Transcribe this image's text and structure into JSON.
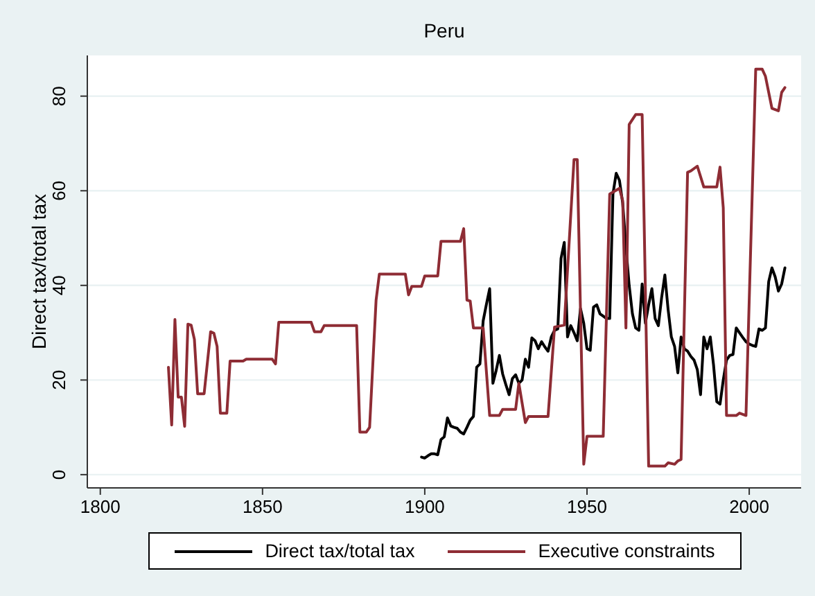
{
  "chart_data": {
    "type": "line",
    "title": "Peru",
    "ylabel": "Direct tax/total tax",
    "series": [
      {
        "name": "Direct tax/total tax",
        "color": "#000000",
        "x": [
          1899,
          1900,
          1901,
          1902,
          1903,
          1904,
          1905,
          1906,
          1907,
          1908,
          1909,
          1910,
          1911,
          1912,
          1913,
          1914,
          1915,
          1916,
          1917,
          1918,
          1919,
          1920,
          1921,
          1922,
          1923,
          1924,
          1925,
          1926,
          1927,
          1928,
          1929,
          1930,
          1931,
          1932,
          1933,
          1934,
          1935,
          1936,
          1937,
          1938,
          1939,
          1940,
          1941,
          1942,
          1943,
          1944,
          1945,
          1946,
          1947,
          1948,
          1949,
          1950,
          1951,
          1952,
          1953,
          1954,
          1955,
          1956,
          1957,
          1958,
          1959,
          1960,
          1961,
          1962,
          1963,
          1964,
          1965,
          1966,
          1967,
          1968,
          1969,
          1970,
          1971,
          1972,
          1973,
          1974,
          1975,
          1976,
          1977,
          1978,
          1979,
          1980,
          1981,
          1982,
          1983,
          1984,
          1985,
          1986,
          1987,
          1988,
          1989,
          1990,
          1991,
          1992,
          1993,
          1994,
          1995,
          1996,
          1997,
          1998,
          1999,
          2000,
          2001,
          2002,
          2003,
          2004,
          2005,
          2006,
          2007,
          2008,
          2009,
          2010,
          2011
        ],
        "values": [
          3.7,
          3.5,
          4.0,
          4.4,
          4.4,
          4.2,
          7.4,
          8.0,
          12.0,
          10.3,
          10.0,
          9.8,
          9.0,
          8.6,
          10.0,
          11.5,
          12.3,
          22.7,
          23.4,
          32.5,
          36.0,
          39.3,
          19.3,
          22.0,
          25.2,
          21.3,
          19.0,
          16.9,
          20.3,
          21.1,
          19.3,
          20.0,
          24.4,
          22.7,
          28.9,
          28.3,
          26.6,
          28.1,
          27.0,
          26.1,
          29.1,
          30.5,
          30.8,
          45.7,
          49.1,
          29.1,
          31.5,
          30.0,
          28.3,
          35.1,
          32.0,
          26.6,
          26.3,
          35.4,
          35.9,
          34.0,
          33.5,
          33.0,
          33.0,
          59.3,
          63.7,
          62.2,
          57.4,
          48.1,
          40.0,
          34.0,
          31.0,
          30.5,
          40.3,
          32.0,
          35.9,
          39.3,
          33.0,
          31.5,
          37.4,
          42.2,
          34.9,
          29.1,
          27.1,
          21.5,
          29.1,
          26.6,
          26.1,
          25.0,
          24.2,
          22.2,
          16.9,
          29.1,
          26.6,
          29.1,
          23.2,
          15.4,
          14.9,
          20.0,
          24.2,
          25.2,
          25.4,
          31.0,
          30.0,
          29.0,
          28.1,
          27.6,
          27.3,
          27.1,
          30.8,
          30.5,
          31.0,
          40.8,
          43.7,
          41.8,
          38.8,
          40.3,
          43.7
        ]
      },
      {
        "name": "Executive constraints",
        "color": "#8e2c34",
        "x": [
          1821,
          1822,
          1823,
          1824,
          1825,
          1826,
          1827,
          1828,
          1829,
          1830,
          1832,
          1834,
          1835,
          1836,
          1837,
          1839,
          1840,
          1844,
          1845,
          1853,
          1854,
          1855,
          1865,
          1866,
          1868,
          1869,
          1879,
          1880,
          1882,
          1883,
          1885,
          1886,
          1894,
          1895,
          1896,
          1899,
          1900,
          1904,
          1905,
          1911,
          1912,
          1913,
          1914,
          1915,
          1918,
          1920,
          1923,
          1924,
          1928,
          1929,
          1931,
          1932,
          1938,
          1940,
          1943,
          1946,
          1947,
          1949,
          1950,
          1955,
          1957,
          1958,
          1960,
          1961,
          1962,
          1963,
          1965,
          1967,
          1969,
          1974,
          1975,
          1977,
          1978,
          1979,
          1981,
          1982,
          1984,
          1986,
          1990,
          1991,
          1992,
          1993,
          1996,
          1997,
          1999,
          2002,
          2004,
          2005,
          2007,
          2009,
          2010,
          2011
        ],
        "values": [
          22.7,
          10.5,
          32.8,
          16.4,
          16.4,
          10.2,
          31.8,
          31.6,
          28.6,
          17.1,
          17.1,
          30.2,
          29.9,
          27.1,
          13.0,
          13.0,
          24.0,
          24.0,
          24.4,
          24.4,
          23.4,
          32.2,
          32.2,
          30.2,
          30.2,
          31.5,
          31.5,
          9.0,
          9.0,
          10.0,
          36.9,
          42.4,
          42.4,
          38.0,
          39.8,
          39.8,
          42.0,
          42.0,
          49.3,
          49.3,
          52.0,
          36.9,
          36.7,
          31.0,
          31.0,
          12.5,
          12.5,
          13.8,
          13.8,
          19.3,
          11.0,
          12.3,
          12.3,
          31.2,
          31.6,
          66.6,
          66.6,
          2.2,
          8.1,
          8.1,
          59.3,
          59.7,
          60.5,
          57.9,
          31.0,
          74.0,
          76.1,
          76.1,
          1.8,
          1.8,
          2.5,
          2.2,
          2.9,
          3.2,
          63.9,
          64.2,
          65.2,
          60.8,
          60.8,
          65.0,
          56.4,
          12.5,
          12.5,
          13.0,
          12.5,
          85.7,
          85.7,
          84.2,
          77.4,
          76.9,
          80.8,
          81.8
        ]
      }
    ],
    "xlim": [
      1796,
      2016
    ],
    "xticks": [
      1800,
      1850,
      1900,
      1950,
      2000
    ],
    "ylim": [
      -2.8,
      88.6
    ],
    "yticks": [
      0,
      20,
      40,
      60,
      80
    ],
    "grid": "y",
    "legend": "bottom",
    "marker": "none",
    "line_style": "solid"
  }
}
